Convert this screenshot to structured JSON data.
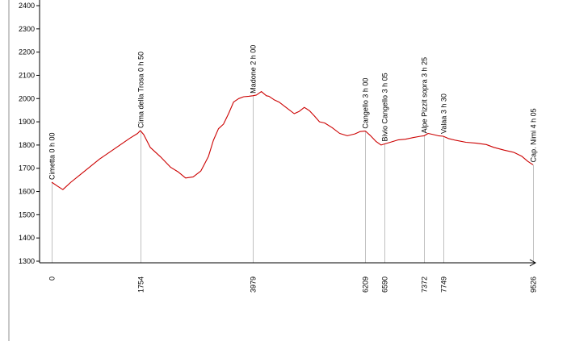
{
  "chart_data": {
    "type": "line",
    "title": "",
    "xlabel": "",
    "ylabel": "",
    "ylim": [
      1300,
      2400
    ],
    "xlim": [
      0,
      9526
    ],
    "y_ticks": [
      "1300",
      "1400",
      "1500",
      "1600",
      "1700",
      "1800",
      "1900",
      "2000",
      "2100",
      "2200",
      "2300",
      "2400"
    ],
    "grid": false,
    "colors": {
      "profile": "#cc0000",
      "axis": "#000000",
      "guide": "#c0c0c0",
      "frame": "#c8c8c8"
    },
    "waypoints": [
      {
        "name": "Cimetta 0 h 00",
        "distance": 0,
        "distance_label": "0"
      },
      {
        "name": "Cima della Trosa 0 h 50",
        "distance": 1754,
        "distance_label": "1754"
      },
      {
        "name": "Madone 2 h 00",
        "distance": 3979,
        "distance_label": "3979"
      },
      {
        "name": "Cangello 3 h 00",
        "distance": 6209,
        "distance_label": "6209"
      },
      {
        "name": "Bivio Cangello 3 h 05",
        "distance": 6590,
        "distance_label": "6590"
      },
      {
        "name": "Alpe Pizzit sopra 3 h 25",
        "distance": 7372,
        "distance_label": "7372"
      },
      {
        "name": "Valaa 3 h 30",
        "distance": 7749,
        "distance_label": "7749"
      },
      {
        "name": "Cap. Nimi 4 h 05",
        "distance": 9526,
        "distance_label": "9526"
      }
    ],
    "series": [
      {
        "x": [
          0,
          100,
          220,
          380,
          550,
          750,
          950,
          1150,
          1350,
          1550,
          1700,
          1754,
          1820,
          1950,
          2150,
          2350,
          2500,
          2650,
          2800,
          2950,
          3100,
          3200,
          3300,
          3400,
          3500,
          3600,
          3700,
          3800,
          3900,
          3979,
          4050,
          4150,
          4250,
          4300,
          4400,
          4500,
          4650,
          4800,
          4900,
          5000,
          5100,
          5200,
          5300,
          5400,
          5550,
          5700,
          5850,
          6000,
          6100,
          6209,
          6300,
          6420,
          6520,
          6590,
          6700,
          6850,
          7000,
          7150,
          7300,
          7372,
          7450,
          7550,
          7650,
          7749,
          7850,
          8000,
          8200,
          8400,
          8600,
          8750,
          8950,
          9150,
          9300,
          9420,
          9526
        ],
        "y": [
          1640,
          1625,
          1608,
          1640,
          1670,
          1705,
          1740,
          1770,
          1800,
          1830,
          1850,
          1862,
          1845,
          1790,
          1750,
          1705,
          1685,
          1658,
          1663,
          1688,
          1750,
          1820,
          1870,
          1890,
          1935,
          1985,
          2000,
          2008,
          2010,
          2012,
          2015,
          2030,
          2012,
          2010,
          1995,
          1985,
          1960,
          1935,
          1945,
          1962,
          1948,
          1925,
          1900,
          1895,
          1875,
          1850,
          1840,
          1848,
          1858,
          1860,
          1842,
          1815,
          1800,
          1805,
          1812,
          1822,
          1825,
          1832,
          1838,
          1840,
          1850,
          1845,
          1840,
          1838,
          1828,
          1820,
          1812,
          1808,
          1802,
          1790,
          1778,
          1768,
          1752,
          1730,
          1715
        ]
      }
    ]
  }
}
